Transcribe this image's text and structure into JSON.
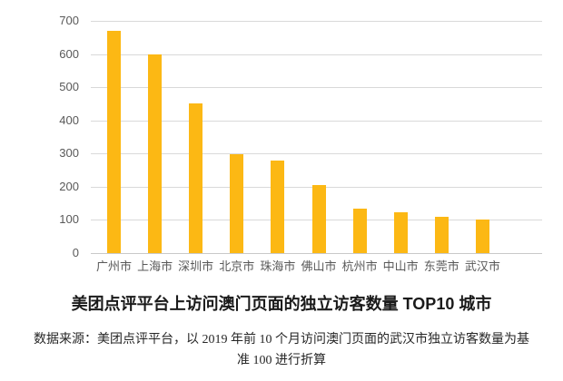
{
  "chart_data": {
    "type": "bar",
    "title": "美团点评平台上访问澳门页面的独立访客数量 TOP10 城市",
    "source_note_lines": [
      "数据来源：美团点评平台，以 2019 年前 10 个月访问澳门页面的武汉市独立访客数量为基",
      "准 100 进行折算"
    ],
    "categories": [
      "广州市",
      "上海市",
      "深圳市",
      "北京市",
      "珠海市",
      "佛山市",
      "杭州市",
      "中山市",
      "东莞市",
      "武汉市"
    ],
    "values": [
      670,
      600,
      450,
      298,
      278,
      205,
      134,
      122,
      110,
      100
    ],
    "xlabel": "",
    "ylabel": "",
    "ylim": [
      0,
      700
    ],
    "yticks": [
      0,
      100,
      200,
      300,
      400,
      500,
      600,
      700
    ],
    "grid": "horizontal",
    "legend": "none",
    "colors": {
      "bar": "#FCB814",
      "gridline": "#D9D9D9",
      "axis_label": "#595959",
      "title_text": "#1A1A1A",
      "source_text": "#262626"
    }
  }
}
